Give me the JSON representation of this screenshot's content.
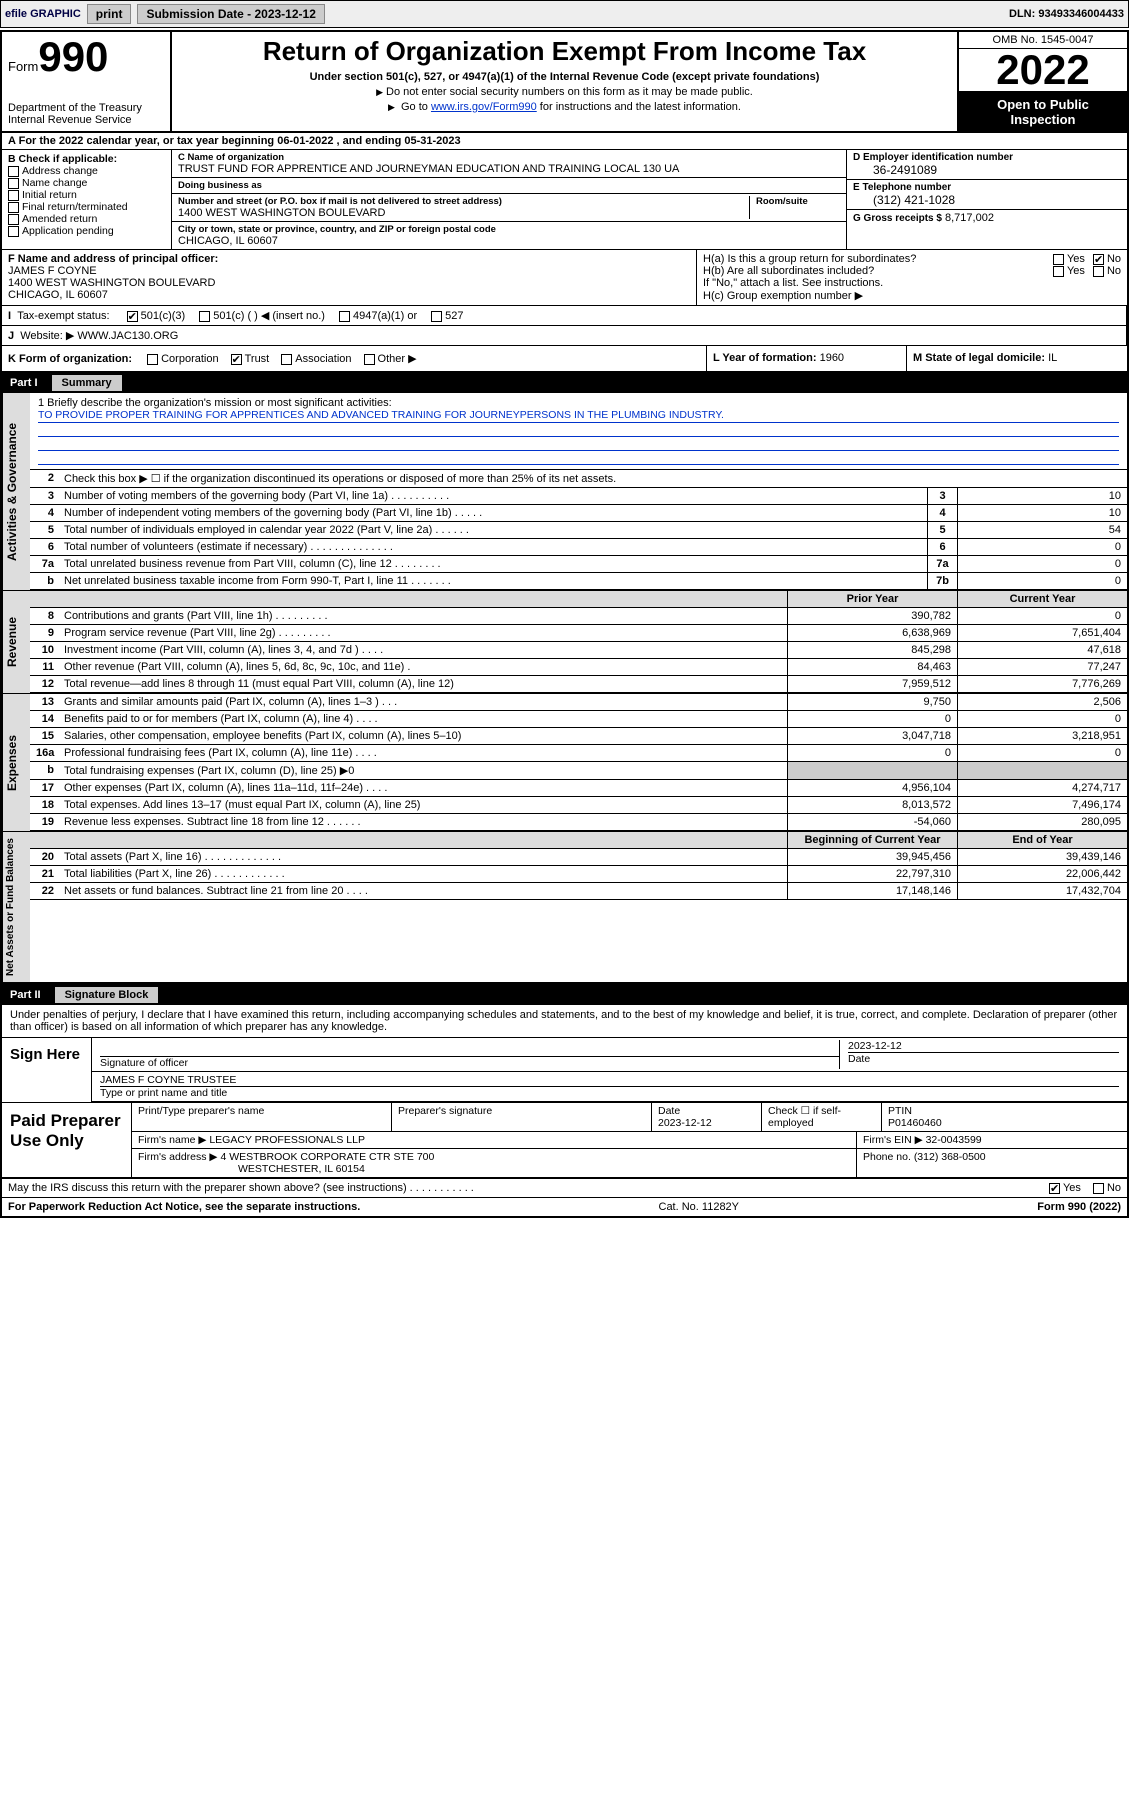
{
  "topbar": {
    "efile": "efile GRAPHIC",
    "print": "print",
    "subdate_label": "Submission Date - 2023-12-12",
    "dln": "DLN: 93493346004433"
  },
  "header": {
    "form_label": "Form",
    "form_num": "990",
    "dept1": "Department of the Treasury",
    "dept2": "Internal Revenue Service",
    "title": "Return of Organization Exempt From Income Tax",
    "sub": "Under section 501(c), 527, or 4947(a)(1) of the Internal Revenue Code (except private foundations)",
    "arrow1": "Do not enter social security numbers on this form as it may be made public.",
    "arrow2_pre": "Go to ",
    "arrow2_link": "www.irs.gov/Form990",
    "arrow2_post": " for instructions and the latest information.",
    "omb": "OMB No. 1545-0047",
    "year": "2022",
    "inspect": "Open to Public Inspection"
  },
  "row_a": "For the 2022 calendar year, or tax year beginning 06-01-2022   , and ending 05-31-2023",
  "box_b": {
    "hdr": "B Check if applicable:",
    "items": [
      "Address change",
      "Name change",
      "Initial return",
      "Final return/terminated",
      "Amended return",
      "Application pending"
    ]
  },
  "box_c": {
    "name_lbl": "C Name of organization",
    "name": "TRUST FUND FOR APPRENTICE AND JOURNEYMAN EDUCATION AND TRAINING LOCAL 130 UA",
    "dba_lbl": "Doing business as",
    "dba": "",
    "addr_lbl": "Number and street (or P.O. box if mail is not delivered to street address)",
    "addr": "1400 WEST WASHINGTON BOULEVARD",
    "suite_lbl": "Room/suite",
    "city_lbl": "City or town, state or province, country, and ZIP or foreign postal code",
    "city": "CHICAGO, IL  60607"
  },
  "box_d": {
    "lbl": "D Employer identification number",
    "val": "36-2491089"
  },
  "box_e": {
    "lbl": "E Telephone number",
    "val": "(312) 421-1028"
  },
  "box_g": {
    "lbl": "G Gross receipts $",
    "val": "8,717,002"
  },
  "box_f": {
    "lbl": "F Name and address of principal officer:",
    "name": "JAMES F COYNE",
    "addr": "1400 WEST WASHINGTON BOULEVARD",
    "city": "CHICAGO, IL  60607"
  },
  "box_h": {
    "a": "H(a)  Is this a group return for subordinates?",
    "b": "H(b)  Are all subordinates included?",
    "b_note": "If \"No,\" attach a list. See instructions.",
    "c": "H(c)  Group exemption number ▶",
    "yes": "Yes",
    "no": "No"
  },
  "row_i": {
    "lbl": "Tax-exempt status:",
    "opts": [
      "501(c)(3)",
      "501(c) (  ) ◀ (insert no.)",
      "4947(a)(1) or",
      "527"
    ]
  },
  "row_j": {
    "lbl": "Website: ▶",
    "val": "WWW.JAC130.ORG"
  },
  "row_k": {
    "lbl": "K Form of organization:",
    "opts": [
      "Corporation",
      "Trust",
      "Association",
      "Other ▶"
    ],
    "l_lbl": "L Year of formation:",
    "l_val": "1960",
    "m_lbl": "M State of legal domicile:",
    "m_val": "IL"
  },
  "part1": {
    "num": "Part I",
    "title": "Summary"
  },
  "mission": {
    "lbl": "1   Briefly describe the organization's mission or most significant activities:",
    "text": "TO PROVIDE PROPER TRAINING FOR APPRENTICES AND ADVANCED TRAINING FOR JOURNEYPERSONS IN THE PLUMBING INDUSTRY."
  },
  "gov_lines": [
    {
      "n": "2",
      "t": "Check this box ▶ ☐  if the organization discontinued its operations or disposed of more than 25% of its net assets.",
      "box": "",
      "v": ""
    },
    {
      "n": "3",
      "t": "Number of voting members of the governing body (Part VI, line 1a)   .   .   .   .   .   .   .   .   .   .",
      "box": "3",
      "v": "10"
    },
    {
      "n": "4",
      "t": "Number of independent voting members of the governing body (Part VI, line 1b)  .   .   .   .   .",
      "box": "4",
      "v": "10"
    },
    {
      "n": "5",
      "t": "Total number of individuals employed in calendar year 2022 (Part V, line 2a)   .   .   .   .   .   .",
      "box": "5",
      "v": "54"
    },
    {
      "n": "6",
      "t": "Total number of volunteers (estimate if necessary)   .   .   .   .   .   .   .   .   .   .   .   .   .   .",
      "box": "6",
      "v": "0"
    },
    {
      "n": "7a",
      "t": "Total unrelated business revenue from Part VIII, column (C), line 12   .   .   .   .   .   .   .   .",
      "box": "7a",
      "v": "0"
    },
    {
      "n": "b",
      "t": "Net unrelated business taxable income from Form 990-T, Part I, line 11   .   .   .   .   .   .   .",
      "box": "7b",
      "v": "0"
    }
  ],
  "colhdr": {
    "prior": "Prior Year",
    "current": "Current Year"
  },
  "colhdr2": {
    "prior": "Beginning of Current Year",
    "current": "End of Year"
  },
  "revenue": [
    {
      "n": "8",
      "t": "Contributions and grants (Part VIII, line 1h)   .   .   .   .   .   .   .   .   .",
      "p": "390,782",
      "c": "0"
    },
    {
      "n": "9",
      "t": "Program service revenue (Part VIII, line 2g)   .   .   .   .   .   .   .   .   .",
      "p": "6,638,969",
      "c": "7,651,404"
    },
    {
      "n": "10",
      "t": "Investment income (Part VIII, column (A), lines 3, 4, and 7d )   .   .   .   .",
      "p": "845,298",
      "c": "47,618"
    },
    {
      "n": "11",
      "t": "Other revenue (Part VIII, column (A), lines 5, 6d, 8c, 9c, 10c, and 11e)   .",
      "p": "84,463",
      "c": "77,247"
    },
    {
      "n": "12",
      "t": "Total revenue—add lines 8 through 11 (must equal Part VIII, column (A), line 12)",
      "p": "7,959,512",
      "c": "7,776,269"
    }
  ],
  "expenses": [
    {
      "n": "13",
      "t": "Grants and similar amounts paid (Part IX, column (A), lines 1–3 )   .   .   .",
      "p": "9,750",
      "c": "2,506"
    },
    {
      "n": "14",
      "t": "Benefits paid to or for members (Part IX, column (A), line 4)   .   .   .   .",
      "p": "0",
      "c": "0"
    },
    {
      "n": "15",
      "t": "Salaries, other compensation, employee benefits (Part IX, column (A), lines 5–10)",
      "p": "3,047,718",
      "c": "3,218,951"
    },
    {
      "n": "16a",
      "t": "Professional fundraising fees (Part IX, column (A), line 11e)   .   .   .   .",
      "p": "0",
      "c": "0"
    },
    {
      "n": "b",
      "t": "Total fundraising expenses (Part IX, column (D), line 25) ▶0",
      "p": "",
      "c": "",
      "shade": true
    },
    {
      "n": "17",
      "t": "Other expenses (Part IX, column (A), lines 11a–11d, 11f–24e)  .   .   .   .",
      "p": "4,956,104",
      "c": "4,274,717"
    },
    {
      "n": "18",
      "t": "Total expenses. Add lines 13–17 (must equal Part IX, column (A), line 25)",
      "p": "8,013,572",
      "c": "7,496,174"
    },
    {
      "n": "19",
      "t": "Revenue less expenses. Subtract line 18 from line 12   .   .   .   .   .   .",
      "p": "-54,060",
      "c": "280,095"
    }
  ],
  "netassets": [
    {
      "n": "20",
      "t": "Total assets (Part X, line 16)   .   .   .   .   .   .   .   .   .   .   .   .   .",
      "p": "39,945,456",
      "c": "39,439,146"
    },
    {
      "n": "21",
      "t": "Total liabilities (Part X, line 26)  .   .   .   .   .   .   .   .   .   .   .   .",
      "p": "22,797,310",
      "c": "22,006,442"
    },
    {
      "n": "22",
      "t": "Net assets or fund balances. Subtract line 21 from line 20   .   .   .   .",
      "p": "17,148,146",
      "c": "17,432,704"
    }
  ],
  "vtabs": {
    "gov": "Activities & Governance",
    "rev": "Revenue",
    "exp": "Expenses",
    "net": "Net Assets or Fund Balances"
  },
  "part2": {
    "num": "Part II",
    "title": "Signature Block"
  },
  "sig_decl": "Under penalties of perjury, I declare that I have examined this return, including accompanying schedules and statements, and to the best of my knowledge and belief, it is true, correct, and complete. Declaration of preparer (other than officer) is based on all information of which preparer has any knowledge.",
  "sign": {
    "here": "Sign Here",
    "officer_lbl": "Signature of officer",
    "date_lbl": "Date",
    "date": "2023-12-12",
    "name": "JAMES F COYNE TRUSTEE",
    "name_lbl": "Type or print name and title"
  },
  "prep": {
    "here": "Paid Preparer Use Only",
    "h1": "Print/Type preparer's name",
    "h2": "Preparer's signature",
    "h3": "Date",
    "h3v": "2023-12-12",
    "h4": "Check ☐ if self-employed",
    "h5": "PTIN",
    "h5v": "P01460460",
    "firm_name_lbl": "Firm's name     ▶",
    "firm_name": "LEGACY PROFESSIONALS LLP",
    "firm_ein_lbl": "Firm's EIN ▶",
    "firm_ein": "32-0043599",
    "firm_addr_lbl": "Firm's address ▶",
    "firm_addr1": "4 WESTBROOK CORPORATE CTR STE 700",
    "firm_addr2": "WESTCHESTER, IL  60154",
    "phone_lbl": "Phone no.",
    "phone": "(312) 368-0500"
  },
  "may_discuss": "May the IRS discuss this return with the preparer shown above? (see instructions)   .   .   .   .   .   .   .   .   .   .   .",
  "footer": {
    "l": "For Paperwork Reduction Act Notice, see the separate instructions.",
    "m": "Cat. No. 11282Y",
    "r": "Form 990 (2022)"
  }
}
